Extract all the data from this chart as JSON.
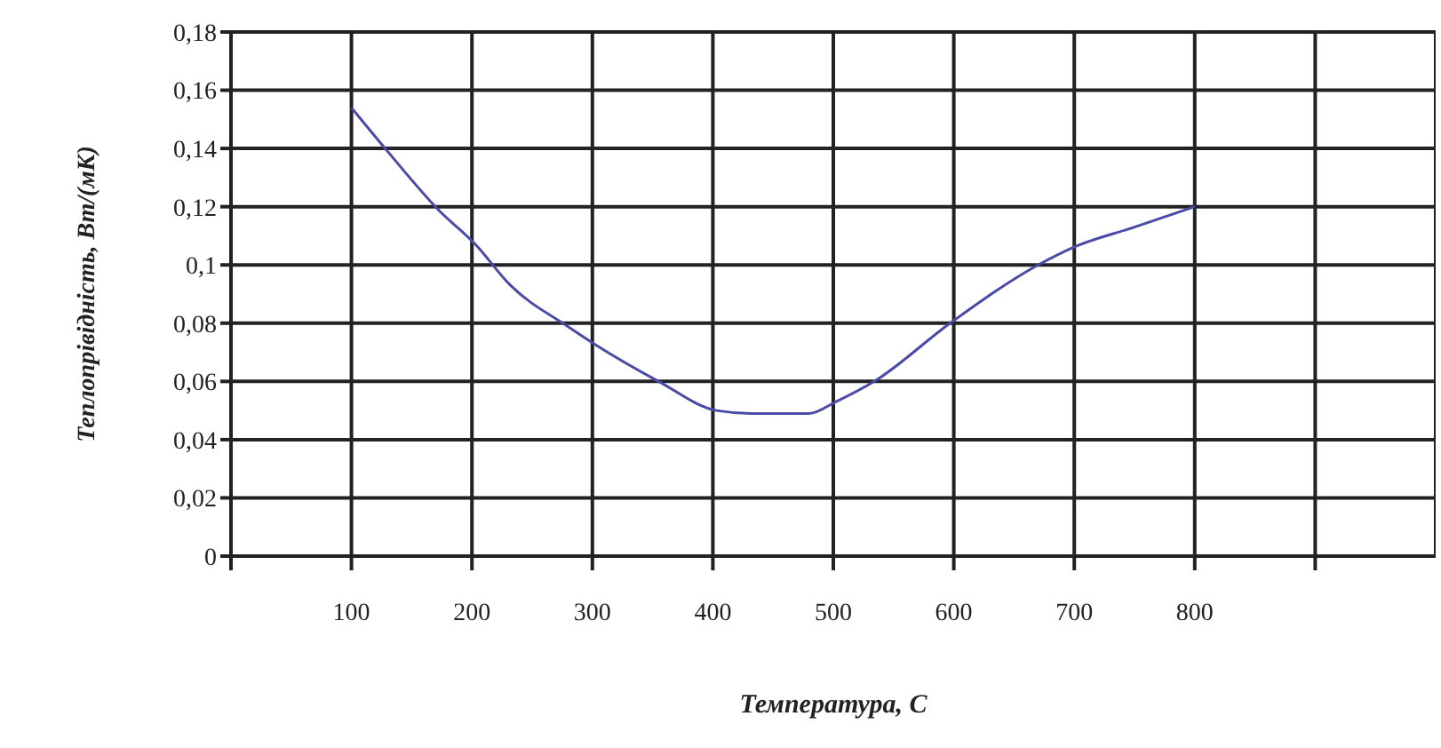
{
  "chart_data": {
    "type": "line",
    "xlabel": "Температура, С",
    "ylabel": "Теплопрівідність, Вт/(мК)",
    "x": [
      100,
      130,
      172,
      203,
      232,
      279,
      301,
      355,
      403,
      432,
      480,
      502,
      534,
      597,
      670,
      699,
      750,
      800
    ],
    "series": [
      {
        "color": "#4a4aa8",
        "values": [
          0.154,
          0.139,
          0.119,
          0.107,
          0.093,
          0.079,
          0.073,
          0.06,
          0.05,
          0.049,
          0.049,
          0.053,
          0.06,
          0.08,
          0.1,
          0.106,
          0.113,
          0.12
        ]
      }
    ],
    "xlim": [
      0,
      1000
    ],
    "xticks": [
      {
        "value": 0,
        "label": null
      },
      100,
      200,
      300,
      400,
      500,
      600,
      700,
      800,
      {
        "value": 900,
        "label": null
      }
    ],
    "ylim": [
      0,
      0.18
    ],
    "yticks": [
      0,
      {
        "value": 0.02,
        "label": "0,02"
      },
      {
        "value": 0.04,
        "label": "0,04"
      },
      {
        "value": 0.06,
        "label": "0,06"
      },
      {
        "value": 0.08,
        "label": "0,08"
      },
      {
        "value": 0.1,
        "label": "0,1"
      },
      {
        "value": 0.12,
        "label": "0,12"
      },
      {
        "value": 0.14,
        "label": "0,14"
      },
      {
        "value": 0.16,
        "label": "0,16"
      },
      {
        "value": 0.18,
        "label": "0,18"
      }
    ],
    "grid": true,
    "marker": "none",
    "line_style": "solid",
    "legend": false
  }
}
